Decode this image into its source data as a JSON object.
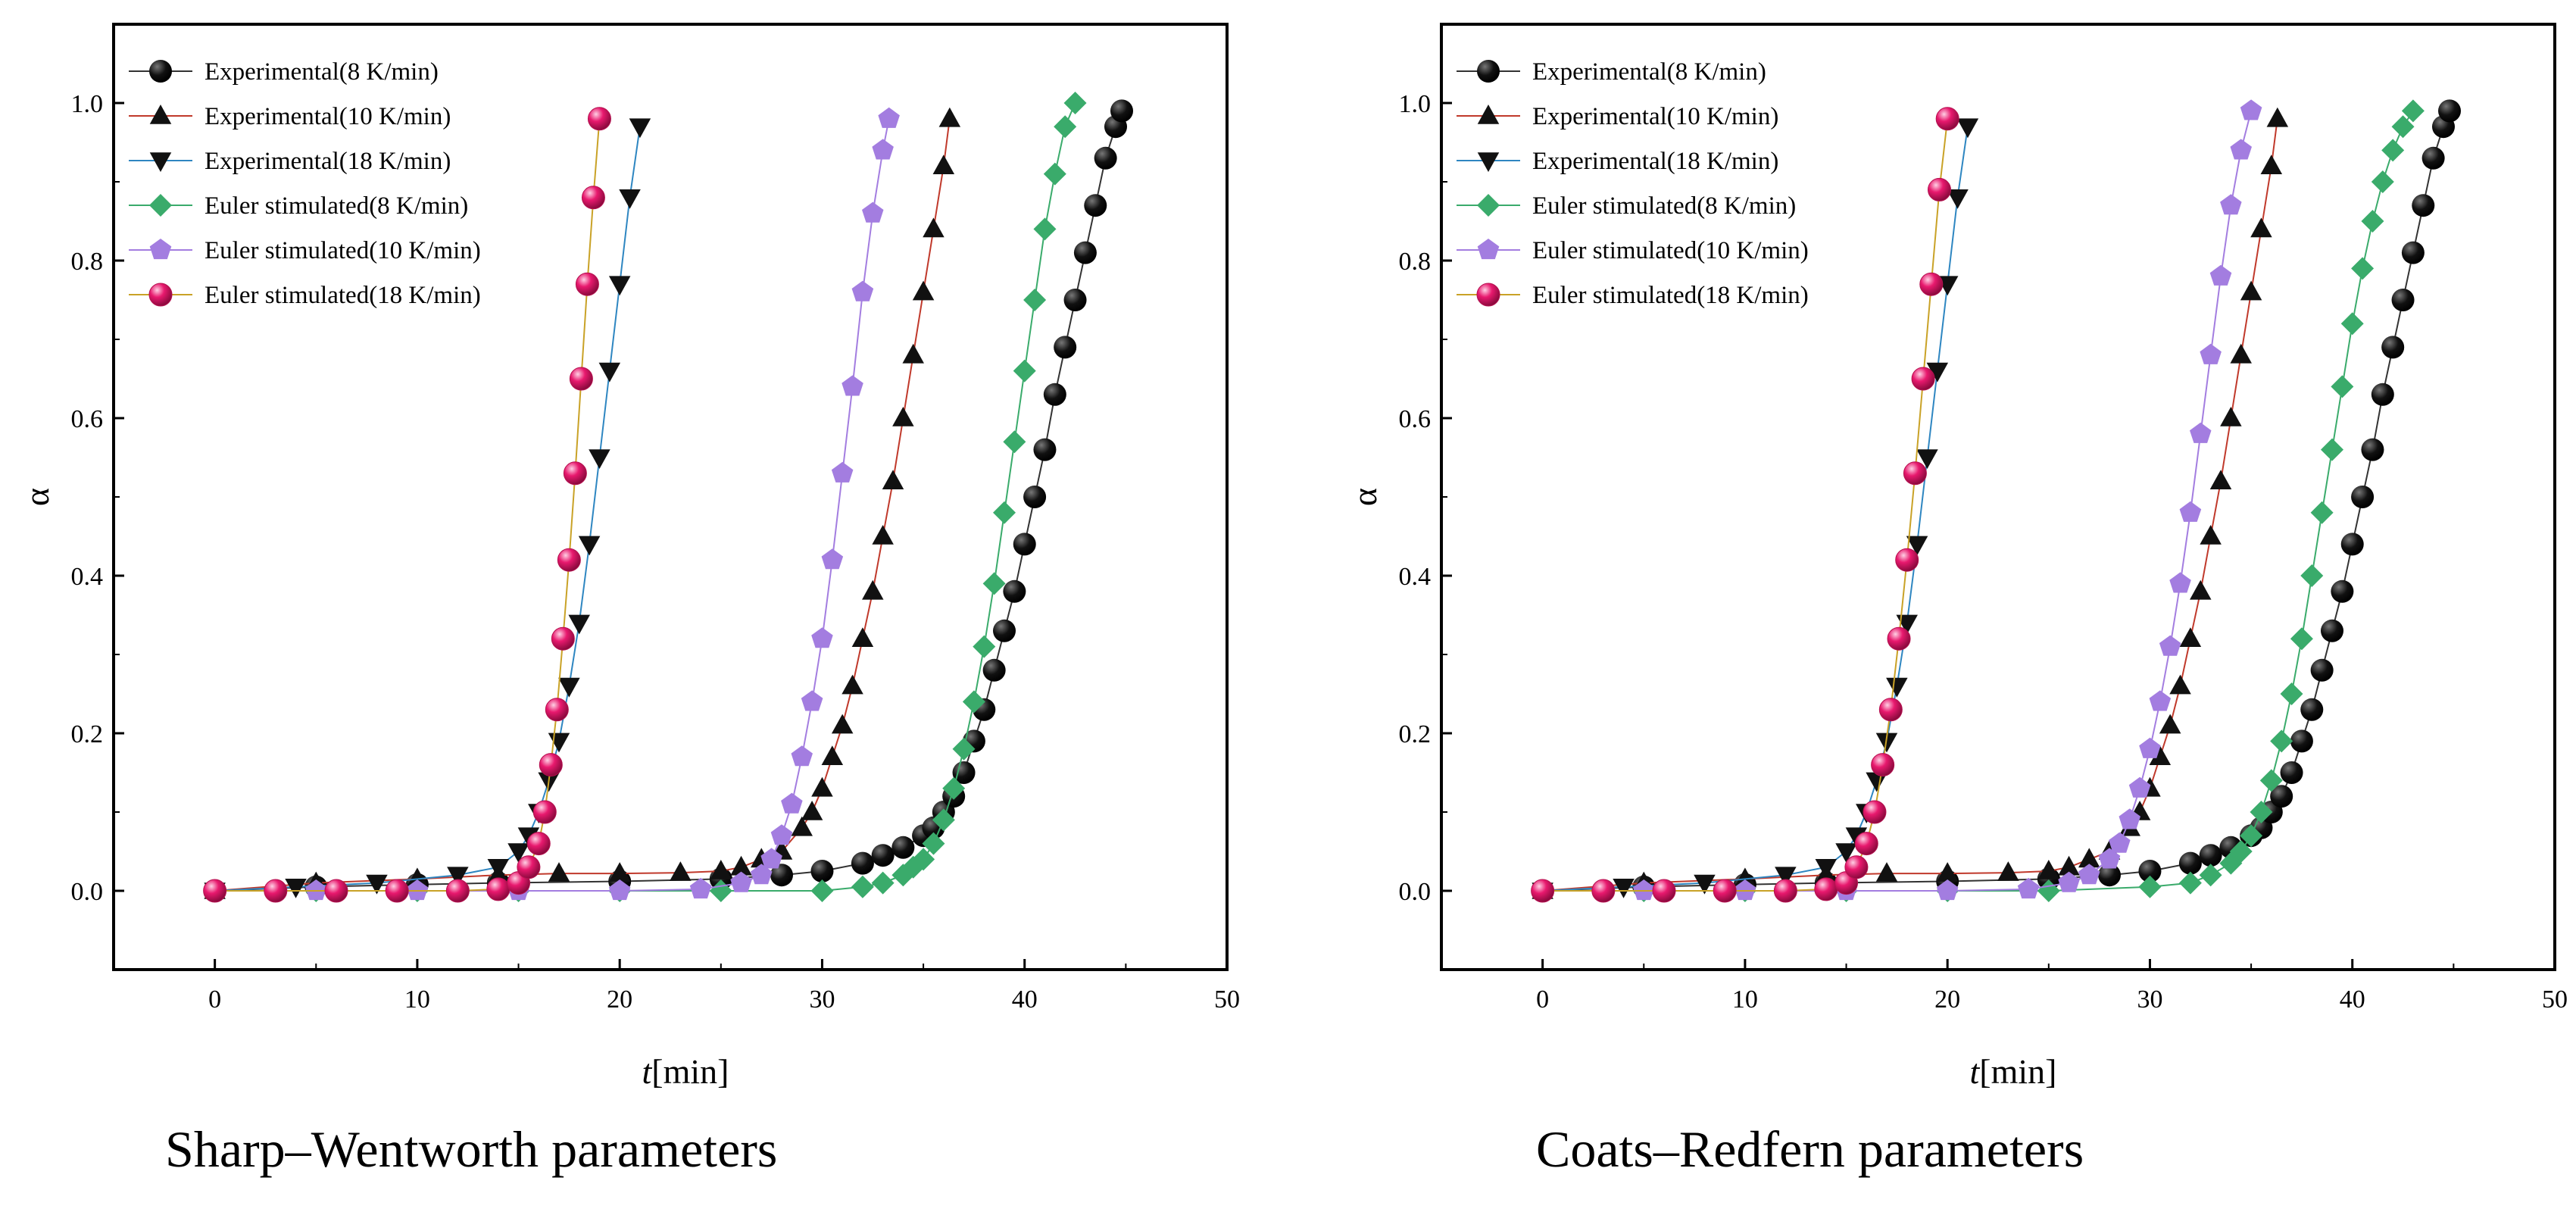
{
  "chart_data": [
    {
      "type": "scatter",
      "caption": "Sharp–Wentworth parameters",
      "xlabel_italic": "t",
      "xlabel_rest": "[min]",
      "ylabel": "α",
      "xlim": [
        -5,
        50
      ],
      "ylim": [
        -0.1,
        1.1
      ],
      "xticks": [
        0,
        10,
        20,
        30,
        40,
        50
      ],
      "yticks": [
        0.0,
        0.2,
        0.4,
        0.6,
        0.8,
        1.0
      ],
      "legend_position": "top-left",
      "grid": false,
      "series": [
        {
          "name": "Experimental(8 K/min)",
          "marker": "circle",
          "color": "#111111",
          "line_color": "#333333",
          "x": [
            0,
            5,
            10,
            14,
            20,
            25,
            28,
            30,
            32,
            33,
            34,
            35,
            35.5,
            36,
            36.5,
            37,
            37.5,
            38,
            38.5,
            39,
            39.5,
            40,
            40.5,
            41,
            41.5,
            42,
            42.5,
            43,
            43.5,
            44,
            44.5,
            44.8
          ],
          "y": [
            0,
            0.005,
            0.008,
            0.01,
            0.012,
            0.015,
            0.02,
            0.025,
            0.035,
            0.045,
            0.055,
            0.07,
            0.08,
            0.1,
            0.12,
            0.15,
            0.19,
            0.23,
            0.28,
            0.33,
            0.38,
            0.44,
            0.5,
            0.56,
            0.63,
            0.69,
            0.75,
            0.81,
            0.87,
            0.93,
            0.97,
            0.99
          ]
        },
        {
          "name": "Experimental(10 K/min)",
          "marker": "triangle-up",
          "color": "#111111",
          "line_color": "#c0392b",
          "x": [
            0,
            5,
            10,
            14,
            17,
            20,
            23,
            25,
            26,
            27,
            28,
            29,
            29.5,
            30,
            30.5,
            31,
            31.5,
            32,
            32.5,
            33,
            33.5,
            34,
            34.5,
            35,
            35.5,
            36,
            36.3
          ],
          "y": [
            0,
            0.01,
            0.015,
            0.02,
            0.022,
            0.022,
            0.023,
            0.025,
            0.03,
            0.04,
            0.05,
            0.08,
            0.1,
            0.13,
            0.17,
            0.21,
            0.26,
            0.32,
            0.38,
            0.45,
            0.52,
            0.6,
            0.68,
            0.76,
            0.84,
            0.92,
            0.98
          ]
        },
        {
          "name": "Experimental(18 K/min)",
          "marker": "triangle-down",
          "color": "#111111",
          "line_color": "#2e86c1",
          "x": [
            0,
            4,
            8,
            12,
            14,
            15,
            15.5,
            16,
            16.5,
            17,
            17.5,
            18,
            18.5,
            19,
            19.5,
            20,
            20.5,
            21
          ],
          "y": [
            0,
            0.005,
            0.01,
            0.02,
            0.03,
            0.05,
            0.07,
            0.1,
            0.14,
            0.19,
            0.26,
            0.34,
            0.44,
            0.55,
            0.66,
            0.77,
            0.88,
            0.97
          ]
        },
        {
          "name": "Euler stimulated(8 K/min)",
          "marker": "diamond",
          "color": "#3aab6b",
          "line_color": "#3aab6b",
          "x": [
            0,
            5,
            10,
            15,
            20,
            25,
            30,
            32,
            33,
            34,
            34.5,
            35,
            35.5,
            36,
            36.5,
            37,
            37.5,
            38,
            38.5,
            39,
            39.5,
            40,
            40.5,
            41,
            41.5,
            42,
            42.5
          ],
          "y": [
            0,
            0,
            0,
            0,
            0,
            0,
            0,
            0.005,
            0.01,
            0.02,
            0.03,
            0.04,
            0.06,
            0.09,
            0.13,
            0.18,
            0.24,
            0.31,
            0.39,
            0.48,
            0.57,
            0.66,
            0.75,
            0.84,
            0.91,
            0.97,
            1.0
          ]
        },
        {
          "name": "Euler stimulated(10 K/min)",
          "marker": "pentagon",
          "color": "#a37de0",
          "line_color": "#a37de0",
          "x": [
            0,
            5,
            10,
            15,
            20,
            24,
            26,
            27,
            27.5,
            28,
            28.5,
            29,
            29.5,
            30,
            30.5,
            31,
            31.5,
            32,
            32.5,
            33,
            33.3
          ],
          "y": [
            0,
            0,
            0,
            0,
            0,
            0.002,
            0.01,
            0.02,
            0.04,
            0.07,
            0.11,
            0.17,
            0.24,
            0.32,
            0.42,
            0.53,
            0.64,
            0.76,
            0.86,
            0.94,
            0.98
          ]
        },
        {
          "name": "Euler stimulated(18 K/min)",
          "marker": "sphere",
          "color": "#e8196e",
          "line_color": "#c9a227",
          "x": [
            0,
            3,
            6,
            9,
            12,
            14,
            15,
            15.5,
            16,
            16.3,
            16.6,
            16.9,
            17.2,
            17.5,
            17.8,
            18.1,
            18.4,
            18.7,
            19
          ],
          "y": [
            0,
            0,
            0,
            0,
            0,
            0.002,
            0.01,
            0.03,
            0.06,
            0.1,
            0.16,
            0.23,
            0.32,
            0.42,
            0.53,
            0.65,
            0.77,
            0.88,
            0.98
          ]
        }
      ]
    },
    {
      "type": "scatter",
      "caption": "Coats–Redfern parameters",
      "xlabel_italic": "t",
      "xlabel_rest": "[min]",
      "ylabel": "α",
      "xlim": [
        -5,
        50
      ],
      "ylim": [
        -0.1,
        1.1
      ],
      "xticks": [
        0,
        10,
        20,
        30,
        40,
        50
      ],
      "yticks": [
        0.0,
        0.2,
        0.4,
        0.6,
        0.8,
        1.0
      ],
      "legend_position": "top-left",
      "grid": false,
      "series": [
        {
          "name": "Experimental(8 K/min)",
          "marker": "circle",
          "color": "#111111",
          "line_color": "#333333",
          "x": [
            0,
            5,
            10,
            14,
            20,
            25,
            28,
            30,
            32,
            33,
            34,
            35,
            35.5,
            36,
            36.5,
            37,
            37.5,
            38,
            38.5,
            39,
            39.5,
            40,
            40.5,
            41,
            41.5,
            42,
            42.5,
            43,
            43.5,
            44,
            44.5,
            44.8
          ],
          "y": [
            0,
            0.005,
            0.008,
            0.01,
            0.012,
            0.015,
            0.02,
            0.025,
            0.035,
            0.045,
            0.055,
            0.07,
            0.08,
            0.1,
            0.12,
            0.15,
            0.19,
            0.23,
            0.28,
            0.33,
            0.38,
            0.44,
            0.5,
            0.56,
            0.63,
            0.69,
            0.75,
            0.81,
            0.87,
            0.93,
            0.97,
            0.99
          ]
        },
        {
          "name": "Experimental(10 K/min)",
          "marker": "triangle-up",
          "color": "#111111",
          "line_color": "#c0392b",
          "x": [
            0,
            5,
            10,
            14,
            17,
            20,
            23,
            25,
            26,
            27,
            28,
            29,
            29.5,
            30,
            30.5,
            31,
            31.5,
            32,
            32.5,
            33,
            33.5,
            34,
            34.5,
            35,
            35.5,
            36,
            36.3
          ],
          "y": [
            0,
            0.01,
            0.015,
            0.02,
            0.022,
            0.022,
            0.023,
            0.025,
            0.03,
            0.04,
            0.05,
            0.08,
            0.1,
            0.13,
            0.17,
            0.21,
            0.26,
            0.32,
            0.38,
            0.45,
            0.52,
            0.6,
            0.68,
            0.76,
            0.84,
            0.92,
            0.98
          ]
        },
        {
          "name": "Experimental(18 K/min)",
          "marker": "triangle-down",
          "color": "#111111",
          "line_color": "#2e86c1",
          "x": [
            0,
            4,
            8,
            12,
            14,
            15,
            15.5,
            16,
            16.5,
            17,
            17.5,
            18,
            18.5,
            19,
            19.5,
            20,
            20.5,
            21
          ],
          "y": [
            0,
            0.005,
            0.01,
            0.02,
            0.03,
            0.05,
            0.07,
            0.1,
            0.14,
            0.19,
            0.26,
            0.34,
            0.44,
            0.55,
            0.66,
            0.77,
            0.88,
            0.97
          ]
        },
        {
          "name": "Euler stimulated(8 K/min)",
          "marker": "diamond",
          "color": "#3aab6b",
          "line_color": "#3aab6b",
          "x": [
            0,
            5,
            10,
            15,
            20,
            25,
            30,
            32,
            33,
            34,
            34.5,
            35,
            35.5,
            36,
            36.5,
            37,
            37.5,
            38,
            38.5,
            39,
            39.5,
            40,
            40.5,
            41,
            41.5,
            42,
            42.5,
            43
          ],
          "y": [
            0,
            0,
            0,
            0,
            0,
            0,
            0.005,
            0.01,
            0.02,
            0.035,
            0.05,
            0.07,
            0.1,
            0.14,
            0.19,
            0.25,
            0.32,
            0.4,
            0.48,
            0.56,
            0.64,
            0.72,
            0.79,
            0.85,
            0.9,
            0.94,
            0.97,
            0.99
          ]
        },
        {
          "name": "Euler stimulated(10 K/min)",
          "marker": "pentagon",
          "color": "#a37de0",
          "line_color": "#a37de0",
          "x": [
            0,
            5,
            10,
            15,
            20,
            24,
            26,
            27,
            28,
            28.5,
            29,
            29.5,
            30,
            30.5,
            31,
            31.5,
            32,
            32.5,
            33,
            33.5,
            34,
            34.5,
            35
          ],
          "y": [
            0,
            0,
            0,
            0,
            0,
            0.002,
            0.01,
            0.02,
            0.04,
            0.06,
            0.09,
            0.13,
            0.18,
            0.24,
            0.31,
            0.39,
            0.48,
            0.58,
            0.68,
            0.78,
            0.87,
            0.94,
            0.99
          ]
        },
        {
          "name": "Euler stimulated(18 K/min)",
          "marker": "sphere",
          "color": "#e8196e",
          "line_color": "#c9a227",
          "x": [
            0,
            3,
            6,
            9,
            12,
            14,
            15,
            15.5,
            16,
            16.4,
            16.8,
            17.2,
            17.6,
            18,
            18.4,
            18.8,
            19.2,
            19.6,
            20
          ],
          "y": [
            0,
            0,
            0,
            0,
            0,
            0.002,
            0.01,
            0.03,
            0.06,
            0.1,
            0.16,
            0.23,
            0.32,
            0.42,
            0.53,
            0.65,
            0.77,
            0.89,
            0.98
          ]
        }
      ]
    }
  ]
}
